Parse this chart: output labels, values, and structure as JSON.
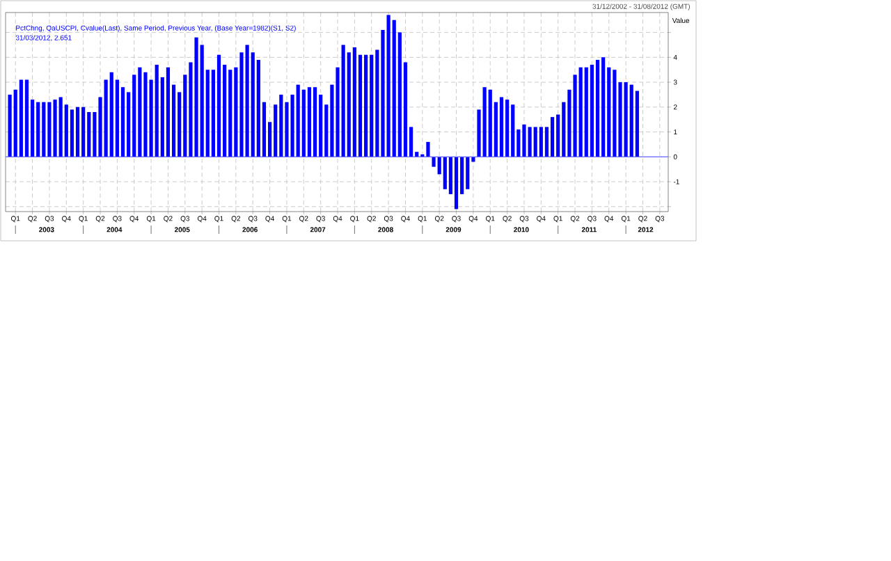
{
  "chart_data": {
    "type": "bar",
    "subtitle": "31/12/2002 - 31/08/2012 (GMT)",
    "ylabel": "Value",
    "categories": [
      null,
      "Q1",
      null,
      null,
      "Q2",
      null,
      null,
      "Q3",
      null,
      null,
      "Q4",
      null,
      null,
      "Q1",
      null,
      null,
      "Q2",
      null,
      null,
      "Q3",
      null,
      null,
      "Q4",
      null,
      null,
      "Q1",
      null,
      null,
      "Q2",
      null,
      null,
      "Q3",
      null,
      null,
      "Q4",
      null,
      null,
      "Q1",
      null,
      null,
      "Q2",
      null,
      null,
      "Q3",
      null,
      null,
      "Q4",
      null,
      null,
      "Q1",
      null,
      null,
      "Q2",
      null,
      null,
      "Q3",
      null,
      null,
      "Q4",
      null,
      null,
      "Q1",
      null,
      null,
      "Q2",
      null,
      null,
      "Q3",
      null,
      null,
      "Q4",
      null,
      null,
      "Q1",
      null,
      null,
      "Q2",
      null,
      null,
      "Q3",
      null,
      null,
      "Q4",
      null,
      null,
      "Q1",
      null,
      null,
      "Q2",
      null,
      null,
      "Q3",
      null,
      null,
      "Q4",
      null,
      null,
      "Q1",
      null,
      null,
      "Q2",
      null,
      null,
      "Q3",
      null,
      null,
      "Q4",
      null,
      null,
      "Q1",
      null,
      null,
      "Q2",
      null,
      null,
      "Q3",
      null
    ],
    "series": [
      {
        "name": "PctChng, QaUSCPI, Cvalue(Last), Same Period, Previous Year, (Base Year=1982)(S1, S2)",
        "color": "#0000ff",
        "values": [
          2.5,
          2.7,
          3.1,
          3.1,
          2.3,
          2.2,
          2.2,
          2.2,
          2.3,
          2.4,
          2.1,
          1.9,
          2.0,
          2.0,
          1.8,
          1.8,
          2.4,
          3.1,
          3.4,
          3.1,
          2.8,
          2.6,
          3.3,
          3.6,
          3.4,
          3.1,
          3.7,
          3.2,
          3.6,
          2.9,
          2.6,
          3.3,
          3.8,
          4.8,
          4.5,
          3.5,
          3.5,
          4.1,
          3.7,
          3.5,
          3.6,
          4.2,
          4.5,
          4.2,
          3.9,
          2.2,
          1.4,
          2.1,
          2.5,
          2.2,
          2.5,
          2.9,
          2.7,
          2.8,
          2.8,
          2.5,
          2.1,
          2.9,
          3.6,
          4.5,
          4.2,
          4.4,
          4.1,
          4.1,
          4.1,
          4.3,
          5.1,
          5.7,
          5.5,
          5.0,
          3.8,
          1.2,
          0.2,
          0.1,
          0.6,
          -0.4,
          -0.7,
          -1.3,
          -1.5,
          -2.1,
          -1.5,
          -1.3,
          -0.2,
          1.9,
          2.8,
          2.7,
          2.2,
          2.4,
          2.3,
          2.1,
          1.1,
          1.3,
          1.2,
          1.2,
          1.2,
          1.2,
          1.6,
          1.7,
          2.2,
          2.7,
          3.3,
          3.6,
          3.6,
          3.7,
          3.9,
          4.0,
          3.6,
          3.5,
          3.0,
          3.0,
          2.9,
          2.651,
          null,
          null,
          null,
          null,
          null
        ]
      }
    ],
    "ylim": [
      -2.2,
      5.8
    ],
    "yticks": [
      {
        "value": -2,
        "label": null
      },
      -1,
      0,
      1,
      2,
      3,
      4,
      {
        "value": 5,
        "label": null
      }
    ],
    "grid": true,
    "ref_lines": [
      {
        "axis": "y",
        "value": 0,
        "color": "#6666ff"
      }
    ],
    "annotations": [
      "31/03/2012, 2.651",
      "2003",
      "2004",
      "2005",
      "2006",
      "2007",
      "2008",
      "2009",
      "2010",
      "2011",
      "2012"
    ]
  }
}
